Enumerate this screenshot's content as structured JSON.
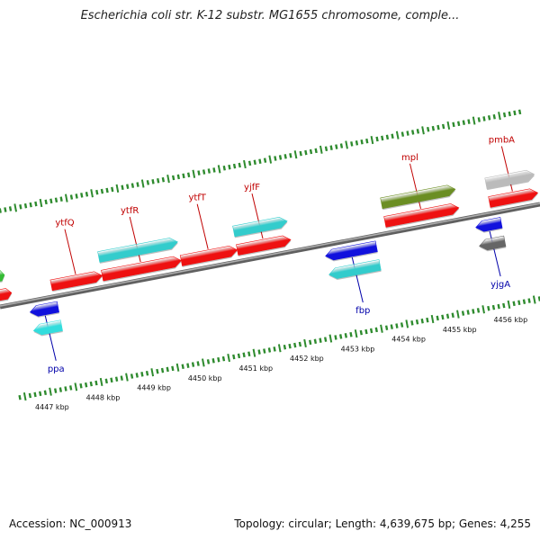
{
  "title": "Escherichia coli str. K-12 substr. MG1655 chromosome, comple...",
  "footer": {
    "accession": "Accession: NC_000913",
    "summary": "Topology: circular; Length: 4,639,675 bp; Genes: 4,255"
  },
  "axis": {
    "start_kbp": 4446.35,
    "end_kbp": 4456.95,
    "kbp_labels": [
      "4447 kbp",
      "4448 kbp",
      "4449 kbp",
      "4450 kbp",
      "4451 kbp",
      "4452 kbp",
      "4453 kbp",
      "4454 kbp",
      "4455 kbp",
      "4456 kbp"
    ]
  },
  "colors": {
    "top_label": "#c00000",
    "bottom_label": "#0000aa",
    "ruler_tick": "#2e8b2e",
    "backbone": "#808080"
  },
  "forward_genes": [
    {
      "name": "",
      "start": 4446.35,
      "end": 4446.55,
      "color": "#33bb33",
      "lane": 2
    },
    {
      "name": "",
      "start": 4446.35,
      "end": 4446.62,
      "color": "#ee1111",
      "lane": 1
    },
    {
      "name": "ytfQ",
      "start": 4447.4,
      "end": 4448.4,
      "color": "#ee1111",
      "lane": 1
    },
    {
      "name": "ytfR",
      "start": 4448.4,
      "end": 4449.95,
      "color": "#ee1111",
      "lane": 1
    },
    {
      "name": "",
      "start": 4448.4,
      "end": 4449.95,
      "color": "#33cccc",
      "lane": 2
    },
    {
      "name": "ytfT",
      "start": 4449.95,
      "end": 4451.05,
      "color": "#ee1111",
      "lane": 1
    },
    {
      "name": "yjfF",
      "start": 4451.05,
      "end": 4452.1,
      "color": "#ee1111",
      "lane": 1
    },
    {
      "name": "",
      "start": 4451.05,
      "end": 4452.1,
      "color": "#33cccc",
      "lane": 2
    },
    {
      "name": "mpl",
      "start": 4453.95,
      "end": 4455.4,
      "color": "#ee1111",
      "lane": 1
    },
    {
      "name": "",
      "start": 4453.95,
      "end": 4455.4,
      "color": "#6b8e23",
      "lane": 2
    },
    {
      "name": "pmbA",
      "start": 4456.0,
      "end": 4456.95,
      "color": "#ee1111",
      "lane": 1
    },
    {
      "name": "",
      "start": 4456.0,
      "end": 4456.95,
      "color": "#bbbbbb",
      "lane": 2
    }
  ],
  "reverse_genes": [
    {
      "name": "ppa",
      "start": 4446.9,
      "end": 4447.45,
      "color": "#1111dd",
      "lane": 1
    },
    {
      "name": "",
      "start": 4446.9,
      "end": 4447.45,
      "color": "#33dddd",
      "lane": 2
    },
    {
      "name": "fbp",
      "start": 4452.7,
      "end": 4453.7,
      "color": "#1111dd",
      "lane": 1
    },
    {
      "name": "",
      "start": 4452.7,
      "end": 4453.7,
      "color": "#33cccc",
      "lane": 2
    },
    {
      "name": "yjgA",
      "start": 4455.65,
      "end": 4456.15,
      "color": "#1111dd",
      "lane": 1
    },
    {
      "name": "",
      "start": 4455.65,
      "end": 4456.15,
      "color": "#666666",
      "lane": 2
    }
  ]
}
